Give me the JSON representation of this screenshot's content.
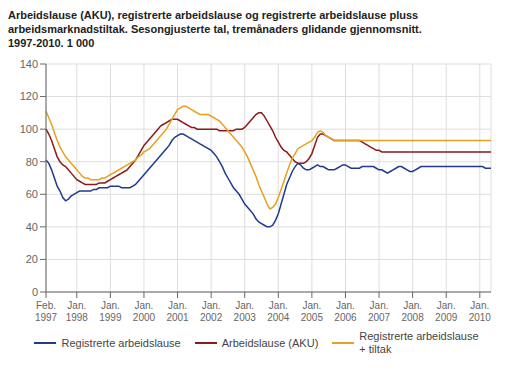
{
  "chart_data": {
    "type": "line",
    "title": "Arbeidslause (AKU), registrerte arbeidslause og registrerte arbeidslause pluss\narbeidsmarknadstiltak. Sesongjusterte tal, tremånaders glidande gjennomsnitt.\n1997-2010. 1 000",
    "categories": [
      "Feb.\n1997",
      null,
      null,
      null,
      null,
      null,
      null,
      null,
      null,
      null,
      null,
      "Jan.\n1998",
      null,
      null,
      null,
      null,
      null,
      null,
      null,
      null,
      null,
      null,
      null,
      "Jan.\n1999",
      null,
      null,
      null,
      null,
      null,
      null,
      null,
      null,
      null,
      null,
      null,
      "Jan.\n2000",
      null,
      null,
      null,
      null,
      null,
      null,
      null,
      null,
      null,
      null,
      null,
      "Jan.\n2001",
      null,
      null,
      null,
      null,
      null,
      null,
      null,
      null,
      null,
      null,
      null,
      "Jan.\n2002",
      null,
      null,
      null,
      null,
      null,
      null,
      null,
      null,
      null,
      null,
      null,
      "Jan.\n2003",
      null,
      null,
      null,
      null,
      null,
      null,
      null,
      null,
      null,
      null,
      null,
      "Jan.\n2004",
      null,
      null,
      null,
      null,
      null,
      null,
      null,
      null,
      null,
      null,
      null,
      "Jan.\n2005",
      null,
      null,
      null,
      null,
      null,
      null,
      null,
      null,
      null,
      null,
      null,
      "Jan.\n2006",
      null,
      null,
      null,
      null,
      null,
      null,
      null,
      null,
      null,
      null,
      null,
      "Jan.\n2007",
      null,
      null,
      null,
      null,
      null,
      null,
      null,
      null,
      null,
      null,
      null,
      "Jan.\n2008",
      null,
      null,
      null,
      null,
      null,
      null,
      null,
      null,
      null,
      null,
      null,
      "Jan.\n2009",
      null,
      null,
      null,
      null,
      null,
      null,
      null,
      null,
      null,
      null,
      null,
      "Jan.\n2010",
      null,
      null,
      null,
      null
    ],
    "series": [
      {
        "name": "Registrerte arbeidslause",
        "color": "#1F3A8F",
        "values": [
          81,
          79,
          75,
          70,
          65,
          62,
          58,
          56,
          57,
          59,
          60,
          61,
          62,
          62,
          62,
          62,
          62,
          63,
          63,
          64,
          64,
          64,
          64,
          65,
          65,
          65,
          65,
          64,
          64,
          64,
          64,
          65,
          66,
          68,
          70,
          72,
          74,
          76,
          78,
          80,
          82,
          84,
          86,
          88,
          90,
          93,
          95,
          96,
          97,
          97,
          96,
          95,
          94,
          93,
          92,
          91,
          90,
          89,
          88,
          87,
          85,
          83,
          80,
          77,
          73,
          70,
          67,
          64,
          62,
          60,
          57,
          54,
          52,
          50,
          48,
          45,
          43,
          42,
          41,
          40,
          40,
          41,
          44,
          48,
          54,
          60,
          66,
          70,
          74,
          77,
          79,
          78,
          76,
          75,
          75,
          76,
          77,
          78,
          77,
          77,
          76,
          75,
          75,
          75,
          76,
          77,
          78,
          78,
          77,
          76,
          76,
          76,
          76,
          77,
          77,
          77,
          77,
          77,
          76,
          75,
          75,
          74,
          73,
          74,
          75,
          76,
          77,
          77,
          76,
          75,
          74,
          74,
          75,
          76,
          77,
          77,
          77,
          77,
          77,
          77,
          77,
          77,
          77,
          77,
          77,
          77,
          77,
          77,
          77,
          77,
          77,
          77,
          77,
          77,
          77,
          77,
          77,
          76,
          76,
          76
        ]
      },
      {
        "name": "Arbeidslause (AKU)",
        "color": "#8B1A1A",
        "values": [
          100,
          97,
          93,
          88,
          83,
          80,
          78,
          77,
          75,
          73,
          71,
          69,
          68,
          67,
          66,
          66,
          66,
          66,
          66,
          67,
          67,
          67,
          68,
          69,
          70,
          71,
          72,
          73,
          74,
          75,
          77,
          79,
          81,
          84,
          87,
          90,
          92,
          94,
          96,
          98,
          100,
          102,
          103,
          104,
          105,
          106,
          106,
          106,
          105,
          104,
          103,
          102,
          101,
          101,
          100,
          100,
          100,
          100,
          100,
          100,
          100,
          100,
          99,
          99,
          99,
          99,
          99,
          99,
          100,
          100,
          100,
          101,
          103,
          105,
          107,
          109,
          110,
          110,
          108,
          105,
          102,
          99,
          95,
          92,
          89,
          87,
          86,
          84,
          82,
          80,
          79,
          79,
          79,
          80,
          82,
          85,
          90,
          95,
          97,
          97,
          96,
          95,
          94,
          93,
          93,
          93,
          93,
          93,
          93,
          93,
          93,
          93,
          93,
          92,
          91,
          90,
          89,
          88,
          87,
          87,
          86,
          86,
          86,
          86,
          86,
          86,
          86,
          86,
          86,
          86,
          86,
          86,
          86,
          86,
          86,
          86,
          86,
          86,
          86,
          86,
          86,
          86,
          86,
          86,
          86,
          86,
          86,
          86,
          86,
          86,
          86,
          86,
          86,
          86,
          86,
          86,
          86,
          86,
          86,
          86
        ]
      },
      {
        "name": "Registrerte arbeidslause\n+ tiltak",
        "color": "#E8A020",
        "values": [
          111,
          107,
          103,
          98,
          93,
          89,
          86,
          83,
          81,
          79,
          77,
          75,
          73,
          71,
          70,
          70,
          69,
          69,
          69,
          69,
          70,
          70,
          71,
          72,
          73,
          74,
          75,
          76,
          77,
          78,
          79,
          80,
          81,
          83,
          84,
          86,
          87,
          88,
          90,
          92,
          94,
          96,
          98,
          100,
          103,
          106,
          109,
          112,
          113,
          114,
          114,
          113,
          112,
          111,
          110,
          109,
          109,
          109,
          109,
          108,
          107,
          106,
          105,
          103,
          101,
          99,
          97,
          95,
          93,
          91,
          89,
          86,
          83,
          79,
          75,
          71,
          66,
          62,
          58,
          54,
          51,
          52,
          54,
          58,
          63,
          68,
          73,
          78,
          82,
          85,
          88,
          89,
          90,
          91,
          92,
          93,
          95,
          98,
          99,
          98,
          96,
          95,
          94,
          93,
          93,
          93,
          93,
          93,
          93,
          93,
          93,
          93,
          93,
          93,
          93,
          93,
          93,
          93,
          93,
          93,
          93,
          93,
          93,
          93,
          93,
          93,
          93,
          93,
          93,
          93,
          93,
          93,
          93,
          93,
          93,
          93,
          93,
          93,
          93,
          93,
          93,
          93,
          93,
          93,
          93,
          93,
          93,
          93,
          93,
          93,
          93,
          93,
          93,
          93,
          93,
          93,
          93,
          93,
          93,
          93
        ]
      }
    ],
    "ylim": [
      0,
      140
    ],
    "yticks": [
      0,
      20,
      40,
      60,
      80,
      100,
      120,
      140
    ],
    "grid": true,
    "legend": "bottom"
  }
}
